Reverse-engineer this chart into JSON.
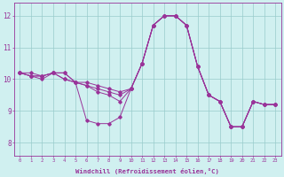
{
  "xlabel": "Windchill (Refroidissement éolien,°C)",
  "ylabel": "",
  "background_color": "#d0f0f0",
  "line_color": "#993399",
  "grid_color": "#99cccc",
  "xlim": [
    -0.5,
    23.5
  ],
  "ylim": [
    7.6,
    12.4
  ],
  "yticks": [
    8,
    9,
    10,
    11,
    12
  ],
  "xticks": [
    0,
    1,
    2,
    3,
    4,
    5,
    6,
    7,
    8,
    9,
    10,
    11,
    12,
    13,
    14,
    15,
    16,
    17,
    18,
    19,
    20,
    21,
    22,
    23
  ],
  "series": [
    [
      10.2,
      10.2,
      10.1,
      10.2,
      10.2,
      9.9,
      8.7,
      8.6,
      8.6,
      8.8,
      9.7,
      10.5,
      11.7,
      12.0,
      12.0,
      11.7,
      10.4,
      9.5,
      9.3,
      8.5,
      8.5,
      9.3,
      9.2,
      9.2
    ],
    [
      10.2,
      10.1,
      10.1,
      10.2,
      10.2,
      9.9,
      9.9,
      9.8,
      9.7,
      9.6,
      9.7,
      10.5,
      11.7,
      12.0,
      12.0,
      11.7,
      10.4,
      9.5,
      9.3,
      8.5,
      8.5,
      9.3,
      9.2,
      9.2
    ],
    [
      10.2,
      10.1,
      10.1,
      10.2,
      10.0,
      9.9,
      9.8,
      9.7,
      9.6,
      9.5,
      9.7,
      10.5,
      11.7,
      12.0,
      12.0,
      11.7,
      10.4,
      9.5,
      9.3,
      8.5,
      8.5,
      9.3,
      9.2,
      9.2
    ],
    [
      10.2,
      10.1,
      10.0,
      10.2,
      10.0,
      9.9,
      9.8,
      9.6,
      9.5,
      9.3,
      9.7,
      10.5,
      11.7,
      12.0,
      12.0,
      11.7,
      10.4,
      9.5,
      9.3,
      8.5,
      8.5,
      9.3,
      9.2,
      9.2
    ]
  ]
}
